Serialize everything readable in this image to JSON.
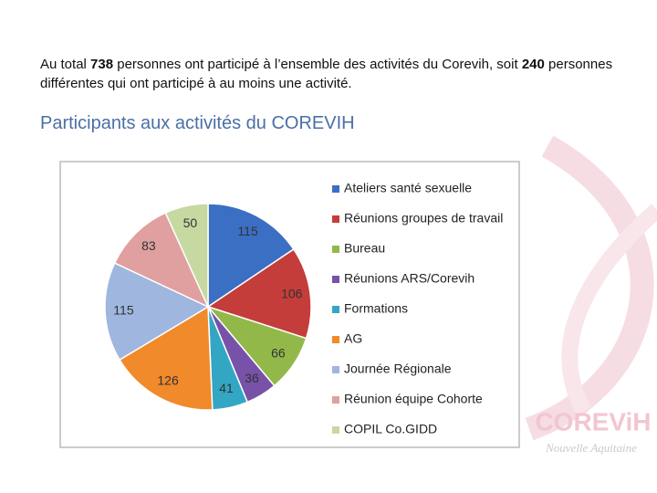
{
  "intro": [
    "Au total ",
    "738",
    " personnes ont participé à l’ensemble des activités du Corevih, soit ",
    "240",
    " personnes différentes qui ont participé à au moins une activité."
  ],
  "heading": "Participants aux activités du COREVIH",
  "logo": {
    "name": "COREViH",
    "region": "Nouvelle Aquitaine"
  },
  "chart_data": {
    "type": "pie",
    "categories": [
      "Ateliers santé sexuelle",
      "Réunions groupes de travail",
      "Bureau",
      "Réunions ARS/Corevih",
      "Formations",
      "AG",
      "Journée Régionale",
      "Réunion équipe Cohorte",
      "COPIL Co.GIDD"
    ],
    "values": [
      115,
      106,
      66,
      36,
      41,
      126,
      115,
      83,
      50
    ],
    "colors": [
      "#3b6fc4",
      "#c43d3a",
      "#93b84a",
      "#7752a8",
      "#33a6c4",
      "#f08a2a",
      "#9fb6df",
      "#e0a0a0",
      "#c6d9a0"
    ],
    "legend": "right"
  }
}
